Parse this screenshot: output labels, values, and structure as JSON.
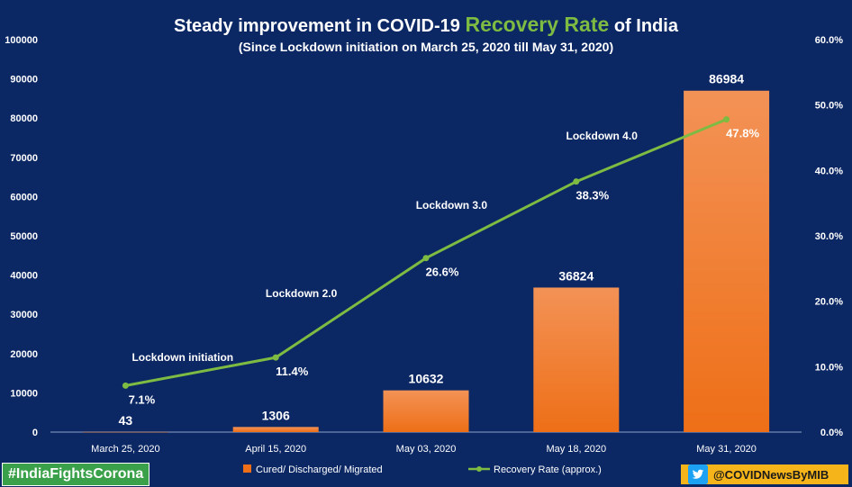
{
  "header": {
    "title_pre": "Steady  improvement in COVID-19 ",
    "title_highlight": "Recovery Rate",
    "title_post": " of  India",
    "subtitle": "(Since Lockdown initiation on March 25, 2020 till May 31, 2020)"
  },
  "footer": {
    "hashtag": "#IndiaFightsCorona",
    "handle": "@COVIDNewsByMIB"
  },
  "colors": {
    "background": "#0b2764",
    "bar": "#f07a2a",
    "line": "#7dbb42",
    "highlight": "#7dbb42"
  },
  "chart_data": {
    "type": "bar",
    "categories": [
      "March 25, 2020",
      "April 15, 2020",
      "May 03, 2020",
      "May 18, 2020",
      "May 31, 2020"
    ],
    "series": [
      {
        "name": "Cured/ Discharged/ Migrated",
        "type": "bar",
        "axis": "left",
        "values": [
          43,
          1306,
          10632,
          36824,
          86984
        ],
        "labels": [
          "43",
          "1306",
          "10632",
          "36824",
          "86984"
        ]
      },
      {
        "name": "Recovery Rate (approx.)",
        "type": "line",
        "axis": "right",
        "values": [
          7.1,
          11.4,
          26.6,
          38.3,
          47.8
        ],
        "labels": [
          "7.1%",
          "11.4%",
          "26.6%",
          "38.3%",
          "47.8%"
        ]
      }
    ],
    "annotations": [
      "Lockdown initiation",
      "Lockdown 2.0",
      "Lockdown 3.0",
      "Lockdown 4.0"
    ],
    "ylim": [
      0,
      100000
    ],
    "yticks": [
      "0",
      "10000",
      "20000",
      "30000",
      "40000",
      "50000",
      "60000",
      "70000",
      "80000",
      "90000",
      "100000"
    ],
    "y2lim": [
      0,
      60
    ],
    "y2ticks": [
      "0.0%",
      "10.0%",
      "20.0%",
      "30.0%",
      "40.0%",
      "50.0%",
      "60.0%"
    ],
    "legend_position": "bottom"
  }
}
